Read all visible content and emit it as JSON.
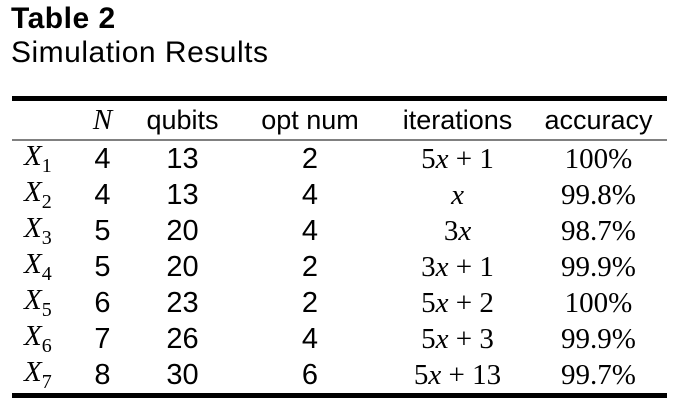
{
  "title": "Table 2",
  "subtitle": "Simulation Results",
  "colors": {
    "background": "#ffffff",
    "text": "#000000",
    "rule_thick": "#000000",
    "rule_thin": "#808080"
  },
  "table": {
    "headers": {
      "label": "",
      "n": "N",
      "qubits": "qubits",
      "opt_num": "opt num",
      "iterations": "iterations",
      "accuracy": "accuracy"
    },
    "rows": [
      {
        "label_base": "X",
        "label_sub": "1",
        "n": "4",
        "qubits": "13",
        "opt_num": "2",
        "it_coef": "5",
        "it_var": "x",
        "it_rest": " + 1",
        "iterations_text": "5x + 1",
        "accuracy": "100%"
      },
      {
        "label_base": "X",
        "label_sub": "2",
        "n": "4",
        "qubits": "13",
        "opt_num": "4",
        "it_coef": "",
        "it_var": "x",
        "it_rest": "",
        "iterations_text": "x",
        "accuracy": "99.8%"
      },
      {
        "label_base": "X",
        "label_sub": "3",
        "n": "5",
        "qubits": "20",
        "opt_num": "4",
        "it_coef": "3",
        "it_var": "x",
        "it_rest": "",
        "iterations_text": "3x",
        "accuracy": "98.7%"
      },
      {
        "label_base": "X",
        "label_sub": "4",
        "n": "5",
        "qubits": "20",
        "opt_num": "2",
        "it_coef": "3",
        "it_var": "x",
        "it_rest": " + 1",
        "iterations_text": "3x + 1",
        "accuracy": "99.9%"
      },
      {
        "label_base": "X",
        "label_sub": "5",
        "n": "6",
        "qubits": "23",
        "opt_num": "2",
        "it_coef": "5",
        "it_var": "x",
        "it_rest": " + 2",
        "iterations_text": "5x + 2",
        "accuracy": "100%"
      },
      {
        "label_base": "X",
        "label_sub": "6",
        "n": "7",
        "qubits": "26",
        "opt_num": "4",
        "it_coef": "5",
        "it_var": "x",
        "it_rest": " + 3",
        "iterations_text": "5x + 3",
        "accuracy": "99.9%"
      },
      {
        "label_base": "X",
        "label_sub": "7",
        "n": "8",
        "qubits": "30",
        "opt_num": "6",
        "it_coef": "5",
        "it_var": "x",
        "it_rest": " + 13",
        "iterations_text": "5x + 13",
        "accuracy": "99.7%"
      }
    ]
  }
}
